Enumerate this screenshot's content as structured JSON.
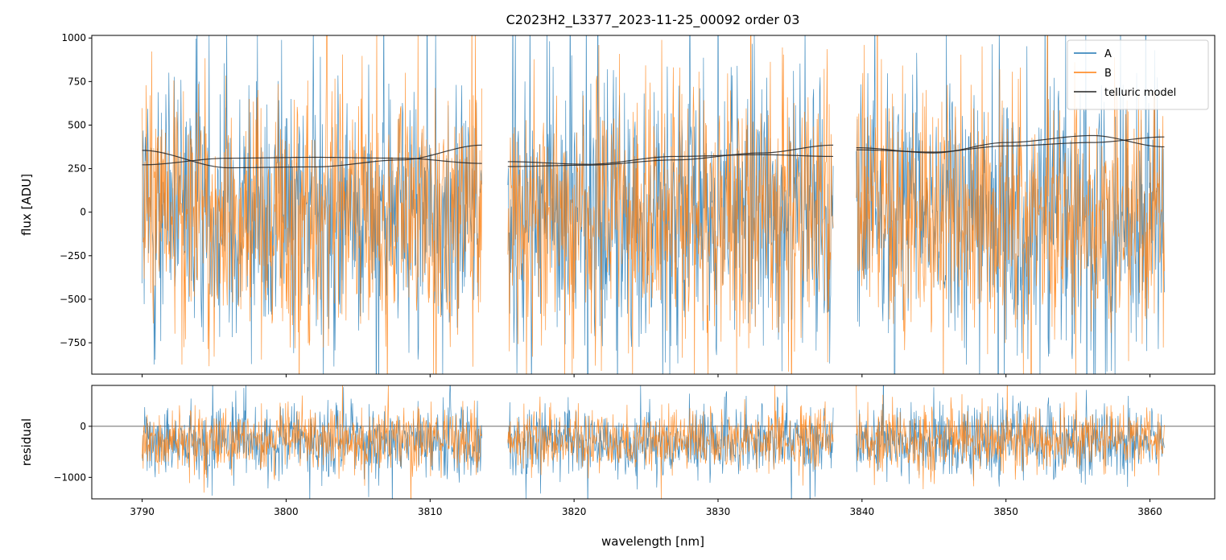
{
  "chart_data": {
    "type": "line",
    "title": "C2023H2_L3377_2023-11-25_00092  order 03",
    "xlabel": "wavelength [nm]",
    "xlim": [
      3786.5,
      3864.5
    ],
    "x_ticks": [
      3790,
      3800,
      3810,
      3820,
      3830,
      3840,
      3850,
      3860
    ],
    "segments": [
      [
        3790.0,
        3813.6
      ],
      [
        3815.4,
        3838.0
      ],
      [
        3839.6,
        3861.0
      ]
    ],
    "colors": {
      "A": "#1f77b4",
      "B": "#ff7f0e",
      "telluric model": "#222222",
      "zero_line": "#555555"
    },
    "legend": {
      "placement": "upper right",
      "entries": [
        "A",
        "B",
        "telluric model"
      ]
    },
    "panels": [
      {
        "id": "flux",
        "ylabel": "flux [ADU]",
        "ylim": [
          -930,
          1015
        ],
        "y_ticks": [
          -750,
          -500,
          -250,
          0,
          250,
          500,
          750,
          1000
        ],
        "y_tick_labels": [
          "−750",
          "−500",
          "−250",
          "0",
          "250",
          "500",
          "750",
          "1000"
        ],
        "series": [
          {
            "name": "A",
            "kind": "noise",
            "mean": 0,
            "std": 380
          },
          {
            "name": "B",
            "kind": "noise",
            "mean": 0,
            "std": 350
          }
        ],
        "telluric_model": [
          {
            "segment": 0,
            "curve_1": {
              "x": [
                3790.0,
                3796.0,
                3802.0,
                3808.0,
                3813.6
              ],
              "y": [
                355,
                255,
                260,
                300,
                385
              ]
            },
            "curve_2": {
              "x": [
                3790.0,
                3796.0,
                3802.0,
                3808.0,
                3813.6
              ],
              "y": [
                272,
                310,
                315,
                310,
                280
              ]
            }
          },
          {
            "segment": 1,
            "curve_1": {
              "x": [
                3815.4,
                3821.0,
                3827.0,
                3833.0,
                3838.0
              ],
              "y": [
                290,
                275,
                320,
                330,
                320
              ]
            },
            "curve_2": {
              "x": [
                3815.4,
                3821.0,
                3827.0,
                3833.0,
                3838.0
              ],
              "y": [
                262,
                270,
                300,
                340,
                385
              ]
            }
          },
          {
            "segment": 2,
            "curve_1": {
              "x": [
                3839.6,
                3845.0,
                3850.0,
                3856.0,
                3861.0
              ],
              "y": [
                370,
                340,
                400,
                440,
                375
              ]
            },
            "curve_2": {
              "x": [
                3839.6,
                3845.0,
                3850.0,
                3856.0,
                3861.0
              ],
              "y": [
                358,
                345,
                380,
                400,
                432
              ]
            }
          }
        ]
      },
      {
        "id": "residual",
        "ylabel": "residual",
        "ylim": [
          -1420,
          800
        ],
        "y_ticks": [
          -1000,
          0
        ],
        "y_tick_labels": [
          "−1000",
          "0"
        ],
        "zero_line": 0,
        "series": [
          {
            "name": "A",
            "kind": "noise",
            "mean": -300,
            "std": 330
          },
          {
            "name": "B",
            "kind": "noise",
            "mean": -280,
            "std": 300
          }
        ]
      }
    ]
  }
}
